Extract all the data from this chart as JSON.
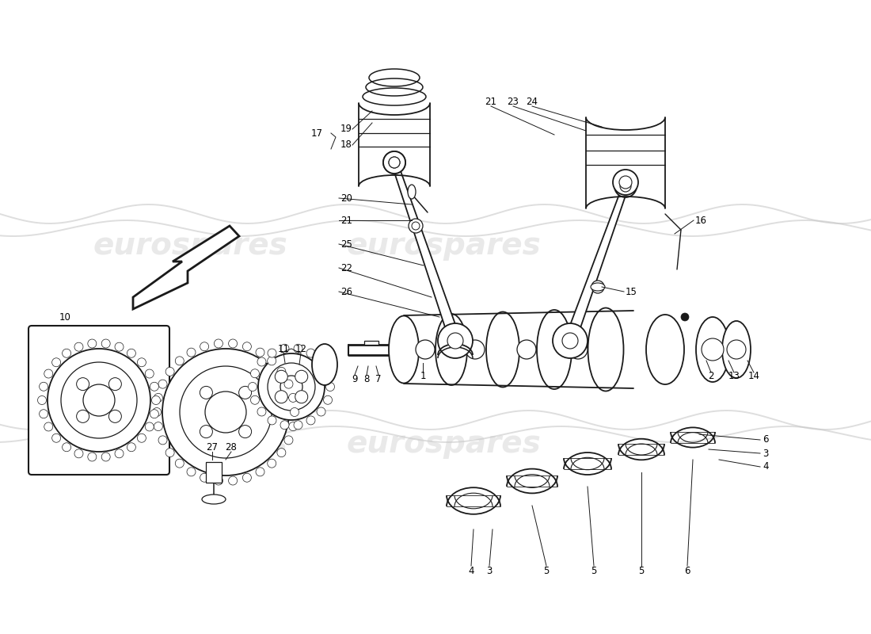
{
  "bg_color": "#ffffff",
  "line_color": "#1a1a1a",
  "label_color": "#000000",
  "label_fontsize": 8.5,
  "watermark_text": "eurospares",
  "watermark_color": "#d8d8d8",
  "watermark_fontsize": 28,
  "fig_w": 11.0,
  "fig_h": 8.0,
  "dpi": 100,
  "xlim": [
    0,
    1100
  ],
  "ylim": [
    0,
    800
  ]
}
